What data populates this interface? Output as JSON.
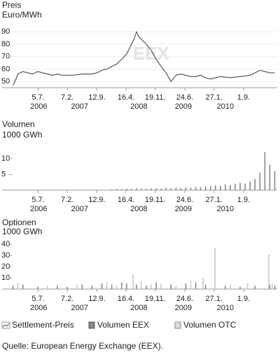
{
  "chart_data": [
    {
      "type": "line",
      "title": "Preis",
      "y_label": "Euro/MWh",
      "annotation": "EEX",
      "xlim": [
        2005.95,
        2011.35
      ],
      "ylim": [
        45,
        93
      ],
      "yticks": [
        50,
        60,
        70,
        80,
        90
      ],
      "grid": true,
      "xticks": [
        {
          "value": 2006.51,
          "label": "5.7."
        },
        {
          "value": 2007.1,
          "label": "7.2."
        },
        {
          "value": 2007.7,
          "label": "12.9."
        },
        {
          "value": 2008.29,
          "label": "16.4."
        },
        {
          "value": 2008.88,
          "label": "19.11."
        },
        {
          "value": 2009.48,
          "label": "24.6."
        },
        {
          "value": 2010.07,
          "label": "27.1."
        },
        {
          "value": 2010.67,
          "label": "1.9."
        }
      ],
      "year_labels": [
        {
          "value": 2006.52,
          "label": "2006"
        },
        {
          "value": 2007.35,
          "label": "2007"
        },
        {
          "value": 2008.55,
          "label": "2008"
        },
        {
          "value": 2009.45,
          "label": "2009"
        },
        {
          "value": 2010.3,
          "label": "2010"
        }
      ],
      "series": [
        {
          "name": "Settlement-Preis",
          "color": "#555555",
          "x": [
            2006.0,
            2006.05,
            2006.1,
            2006.2,
            2006.3,
            2006.4,
            2006.5,
            2006.6,
            2006.7,
            2006.8,
            2006.9,
            2007.0,
            2007.2,
            2007.4,
            2007.6,
            2007.7,
            2007.8,
            2007.9,
            2008.0,
            2008.1,
            2008.2,
            2008.3,
            2008.4,
            2008.45,
            2008.5,
            2008.55,
            2008.6,
            2008.7,
            2008.8,
            2008.9,
            2009.0,
            2009.1,
            2009.2,
            2009.3,
            2009.4,
            2009.5,
            2009.6,
            2009.7,
            2009.8,
            2009.9,
            2010.0,
            2010.2,
            2010.4,
            2010.6,
            2010.8,
            2010.9,
            2011.0,
            2011.1,
            2011.2,
            2011.3
          ],
          "values": [
            47,
            51,
            56,
            58,
            57,
            56,
            58,
            57,
            56,
            55,
            56,
            55,
            55,
            56,
            56,
            57,
            59,
            60,
            62,
            64,
            68,
            72,
            80,
            84,
            90,
            86,
            84,
            80,
            75,
            68,
            62,
            57,
            50,
            55,
            56,
            55,
            54,
            54,
            55,
            53,
            52,
            54,
            53,
            54,
            55,
            57,
            59,
            58,
            57,
            57
          ]
        }
      ]
    },
    {
      "type": "bar",
      "title": "Volumen",
      "y_label": "1000 GWh",
      "xlim": [
        2005.95,
        2011.35
      ],
      "ylim": [
        0,
        14
      ],
      "yticks": [
        5,
        10
      ],
      "xticks": [
        {
          "value": 2006.51,
          "label": "5.7."
        },
        {
          "value": 2007.1,
          "label": "7.2."
        },
        {
          "value": 2007.7,
          "label": "12.9."
        },
        {
          "value": 2008.29,
          "label": "16.4."
        },
        {
          "value": 2008.88,
          "label": "19.11."
        },
        {
          "value": 2009.48,
          "label": "24.6."
        },
        {
          "value": 2010.07,
          "label": "27.1."
        },
        {
          "value": 2010.67,
          "label": "1.9."
        }
      ],
      "year_labels": [
        {
          "value": 2006.52,
          "label": "2006"
        },
        {
          "value": 2007.35,
          "label": "2007"
        },
        {
          "value": 2008.55,
          "label": "2008"
        },
        {
          "value": 2009.45,
          "label": "2009"
        },
        {
          "value": 2010.3,
          "label": "2010"
        }
      ],
      "series": [
        {
          "color": "#888888",
          "x": [
            2008.0,
            2008.1,
            2008.2,
            2008.3,
            2008.4,
            2008.5,
            2008.6,
            2008.7,
            2008.8,
            2008.9,
            2009.0,
            2009.1,
            2009.2,
            2009.3,
            2009.4,
            2009.5,
            2009.6,
            2009.7,
            2009.8,
            2009.9,
            2010.0,
            2010.1,
            2010.2,
            2010.3,
            2010.4,
            2010.5,
            2010.6,
            2010.7,
            2010.8,
            2010.9,
            2011.0,
            2011.1,
            2011.2,
            2011.3
          ],
          "values": [
            0.3,
            0.4,
            0.3,
            0.5,
            0.4,
            0.6,
            0.5,
            0.4,
            0.5,
            0.6,
            0.5,
            0.7,
            0.6,
            0.8,
            0.7,
            0.9,
            0.8,
            1,
            0.9,
            1.2,
            1.3,
            1.5,
            1.4,
            1.8,
            1.6,
            2,
            2.3,
            2.1,
            2.8,
            3.5,
            5.5,
            12,
            8,
            6
          ]
        }
      ]
    },
    {
      "type": "bar",
      "title": "Optionen",
      "y_label": "1000 GWh",
      "xlim": [
        2005.95,
        2011.35
      ],
      "ylim": [
        0,
        47
      ],
      "yticks": [
        10,
        20,
        30,
        40
      ],
      "xticks": [
        {
          "value": 2006.51,
          "label": "5.7."
        },
        {
          "value": 2007.1,
          "label": "7.2."
        },
        {
          "value": 2007.7,
          "label": "12.9."
        },
        {
          "value": 2008.29,
          "label": "16.4."
        },
        {
          "value": 2008.88,
          "label": "19.11."
        },
        {
          "value": 2009.48,
          "label": "24.6."
        },
        {
          "value": 2010.07,
          "label": "27.1."
        },
        {
          "value": 2010.67,
          "label": "1.9."
        }
      ],
      "year_labels": [
        {
          "value": 2006.52,
          "label": "2006"
        },
        {
          "value": 2007.35,
          "label": "2007"
        },
        {
          "value": 2008.55,
          "label": "2008"
        },
        {
          "value": 2009.45,
          "label": "2009"
        },
        {
          "value": 2010.3,
          "label": "2010"
        }
      ],
      "series": [
        {
          "name": "Volumen EEX",
          "color": "#888888",
          "x": [
            2006.0,
            2006.2,
            2006.5,
            2006.9,
            2007.1,
            2007.4,
            2007.6,
            2007.8,
            2008.0,
            2008.2,
            2008.3,
            2008.5,
            2008.7,
            2008.9,
            2009.2,
            2009.5,
            2009.7,
            2009.9,
            2010.3,
            2010.6,
            2010.9,
            2011.2,
            2011.3
          ],
          "values": [
            3,
            4,
            2,
            3,
            2,
            4,
            3,
            5,
            4,
            6,
            5,
            4,
            3,
            6,
            4,
            5,
            6,
            4,
            3,
            2,
            3,
            4,
            3
          ]
        },
        {
          "name": "Volumen OTC",
          "color": "#c8c8c8",
          "x": [
            2006.1,
            2006.7,
            2007.3,
            2007.9,
            2008.1,
            2008.43,
            2008.6,
            2008.8,
            2009.0,
            2009.3,
            2009.6,
            2009.85,
            2010.09,
            2010.4,
            2010.75,
            2011.18,
            2011.25
          ],
          "values": [
            5,
            3,
            4,
            6,
            3,
            13,
            7,
            4,
            5,
            3,
            8,
            10,
            37,
            4,
            5,
            31,
            5
          ]
        }
      ]
    }
  ],
  "source": "Quelle: European Energy Exchange (EEX)."
}
